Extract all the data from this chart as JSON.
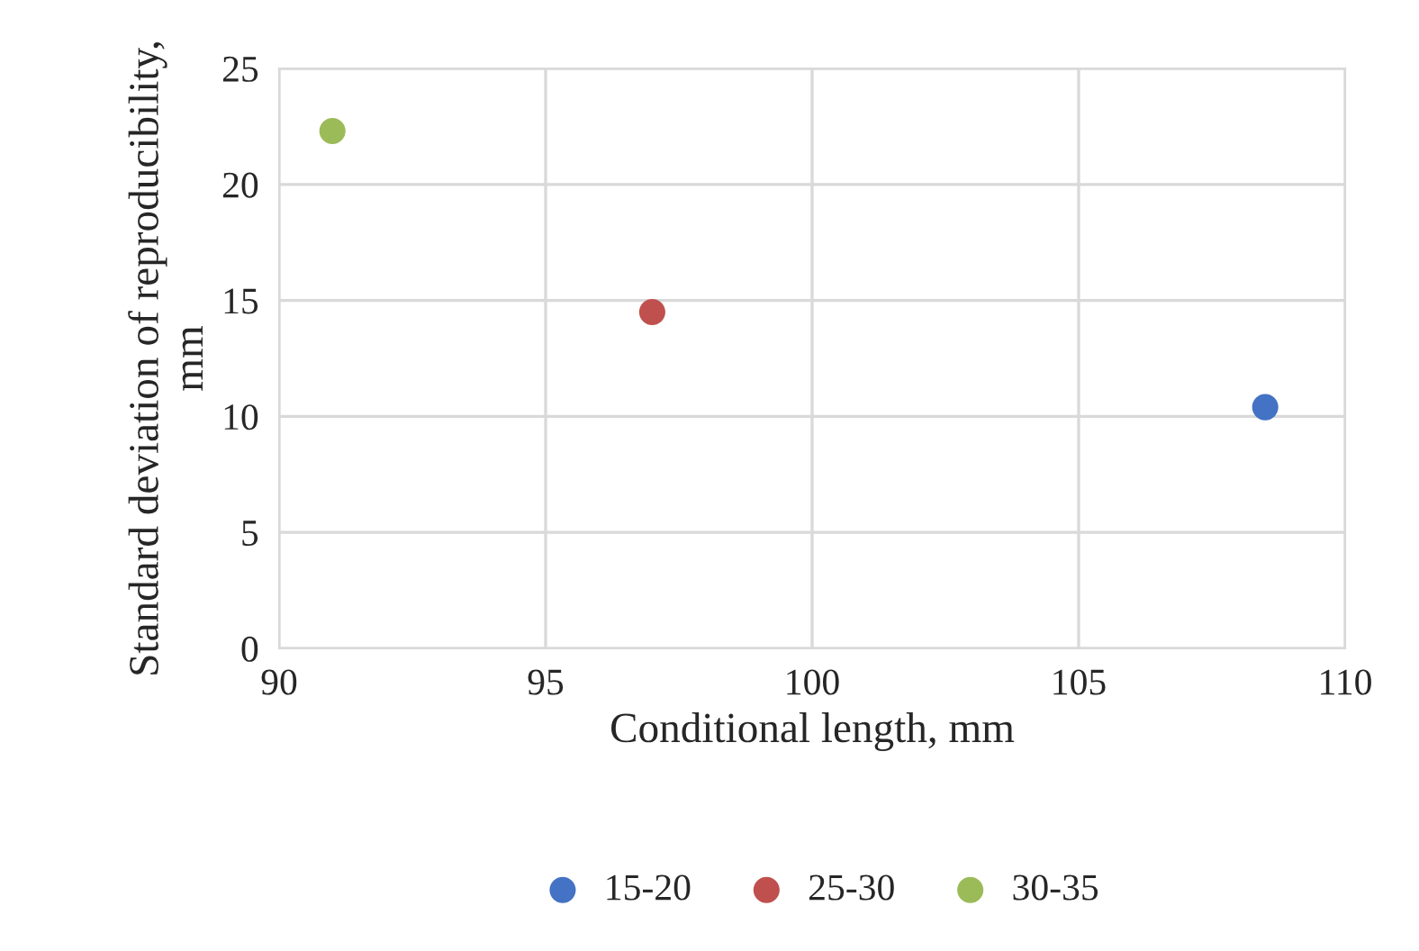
{
  "chart_data": {
    "type": "scatter",
    "xlabel": "Conditional length, mm",
    "ylabel": "Standard deviation of reproducibility,\nmm",
    "series": [
      {
        "name": "15-20",
        "color": "#4472c4",
        "x": [
          108.5
        ],
        "values": [
          10.4
        ]
      },
      {
        "name": "25-30",
        "color": "#c0504d",
        "x": [
          97.0
        ],
        "values": [
          14.5
        ]
      },
      {
        "name": "30-35",
        "color": "#9bbb59",
        "x": [
          91.0
        ],
        "values": [
          22.3
        ]
      }
    ],
    "xlim": [
      90,
      110
    ],
    "xticks": [
      90,
      95,
      100,
      105,
      110
    ],
    "ylim": [
      0,
      25
    ],
    "yticks": [
      0,
      5,
      10,
      15,
      20,
      25
    ],
    "grid": true,
    "legend": "bottom",
    "marker": "circle"
  }
}
